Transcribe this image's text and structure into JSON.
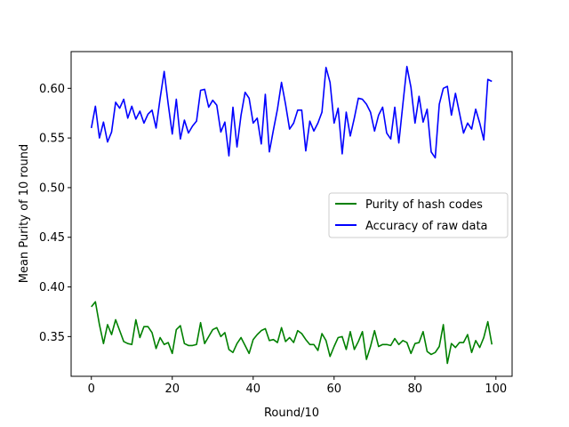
{
  "chart_data": {
    "type": "line",
    "title": "",
    "xlabel": "Round/10",
    "ylabel": "Mean Purity of 10 round",
    "xlim": [
      -5,
      104
    ],
    "ylim": [
      0.31,
      0.637
    ],
    "xticks": [
      0,
      20,
      40,
      60,
      80,
      100
    ],
    "yticks": [
      0.35,
      0.4,
      0.45,
      0.5,
      0.55,
      0.6
    ],
    "ytick_labels": [
      "0.35",
      "0.40",
      "0.45",
      "0.50",
      "0.55",
      "0.60"
    ],
    "grid": false,
    "legend_position": "center-right",
    "x": [
      0,
      1,
      2,
      3,
      4,
      5,
      6,
      7,
      8,
      9,
      10,
      11,
      12,
      13,
      14,
      15,
      16,
      17,
      18,
      19,
      20,
      21,
      22,
      23,
      24,
      25,
      26,
      27,
      28,
      29,
      30,
      31,
      32,
      33,
      34,
      35,
      36,
      37,
      38,
      39,
      40,
      41,
      42,
      43,
      44,
      45,
      46,
      47,
      48,
      49,
      50,
      51,
      52,
      53,
      54,
      55,
      56,
      57,
      58,
      59,
      60,
      61,
      62,
      63,
      64,
      65,
      66,
      67,
      68,
      69,
      70,
      71,
      72,
      73,
      74,
      75,
      76,
      77,
      78,
      79,
      80,
      81,
      82,
      83,
      84,
      85,
      86,
      87,
      88,
      89,
      90,
      91,
      92,
      93,
      94,
      95,
      96,
      97,
      98,
      99
    ],
    "series": [
      {
        "name": "Purity of hash codes",
        "color": "#008000",
        "values": [
          0.38,
          0.385,
          0.362,
          0.343,
          0.362,
          0.352,
          0.367,
          0.356,
          0.345,
          0.343,
          0.342,
          0.367,
          0.349,
          0.36,
          0.36,
          0.354,
          0.338,
          0.349,
          0.342,
          0.344,
          0.333,
          0.357,
          0.361,
          0.343,
          0.341,
          0.341,
          0.342,
          0.364,
          0.343,
          0.35,
          0.357,
          0.359,
          0.35,
          0.354,
          0.337,
          0.334,
          0.343,
          0.349,
          0.341,
          0.333,
          0.347,
          0.352,
          0.356,
          0.358,
          0.346,
          0.347,
          0.344,
          0.359,
          0.345,
          0.349,
          0.344,
          0.356,
          0.353,
          0.347,
          0.342,
          0.342,
          0.336,
          0.353,
          0.346,
          0.33,
          0.34,
          0.349,
          0.35,
          0.337,
          0.355,
          0.337,
          0.345,
          0.355,
          0.327,
          0.34,
          0.356,
          0.34,
          0.342,
          0.342,
          0.341,
          0.348,
          0.342,
          0.346,
          0.344,
          0.333,
          0.343,
          0.344,
          0.355,
          0.335,
          0.332,
          0.334,
          0.34,
          0.362,
          0.323,
          0.343,
          0.339,
          0.344,
          0.344,
          0.352,
          0.334,
          0.346,
          0.339,
          0.349,
          0.365,
          0.342
        ]
      },
      {
        "name": "Accuracy of raw data",
        "color": "#0000ff",
        "values": [
          0.56,
          0.582,
          0.55,
          0.566,
          0.546,
          0.556,
          0.586,
          0.58,
          0.589,
          0.57,
          0.582,
          0.569,
          0.577,
          0.565,
          0.574,
          0.578,
          0.56,
          0.59,
          0.617,
          0.584,
          0.554,
          0.589,
          0.549,
          0.568,
          0.555,
          0.562,
          0.567,
          0.598,
          0.599,
          0.581,
          0.588,
          0.583,
          0.556,
          0.566,
          0.532,
          0.581,
          0.541,
          0.573,
          0.596,
          0.59,
          0.565,
          0.57,
          0.544,
          0.594,
          0.536,
          0.558,
          0.579,
          0.606,
          0.584,
          0.559,
          0.565,
          0.578,
          0.578,
          0.537,
          0.567,
          0.557,
          0.565,
          0.576,
          0.621,
          0.606,
          0.565,
          0.58,
          0.534,
          0.576,
          0.552,
          0.57,
          0.59,
          0.589,
          0.584,
          0.576,
          0.557,
          0.573,
          0.581,
          0.555,
          0.549,
          0.581,
          0.545,
          0.584,
          0.622,
          0.601,
          0.565,
          0.592,
          0.566,
          0.579,
          0.536,
          0.53,
          0.584,
          0.6,
          0.602,
          0.573,
          0.595,
          0.575,
          0.555,
          0.565,
          0.559,
          0.579,
          0.565,
          0.548,
          0.609,
          0.607
        ]
      }
    ]
  }
}
